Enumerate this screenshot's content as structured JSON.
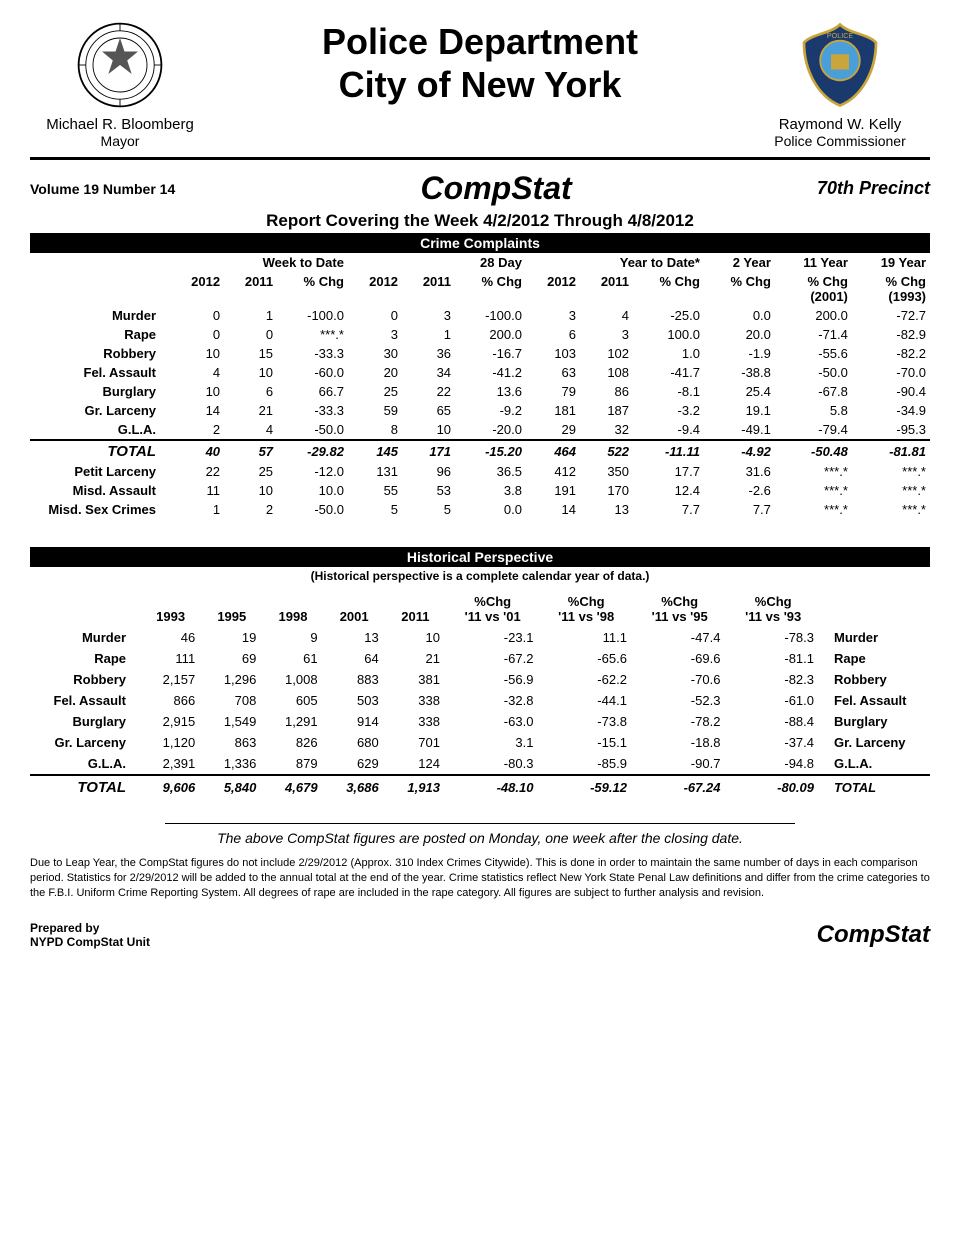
{
  "header": {
    "title_line1": "Police Department",
    "title_line2": "City of New York",
    "left_name": "Michael R. Bloomberg",
    "left_title": "Mayor",
    "right_name": "Raymond W. Kelly",
    "right_title": "Police Commissioner"
  },
  "subheader": {
    "volume": "Volume 19  Number  14",
    "compstat": "CompStat",
    "precinct": "70th Precinct",
    "report_period": "Report Covering the Week  4/2/2012  Through  4/8/2012"
  },
  "crime_complaints": {
    "section_title": "Crime Complaints",
    "group_headers": [
      "",
      "Week to Date",
      "28 Day",
      "Year to Date*",
      "2 Year",
      "11 Year",
      "19 Year"
    ],
    "sub_headers_main": [
      "",
      "2012",
      "2011",
      "% Chg",
      "2012",
      "2011",
      "% Chg",
      "2012",
      "2011",
      "% Chg",
      "% Chg",
      "% Chg (2001)",
      "% Chg (1993)"
    ],
    "rows": [
      {
        "label": "Murder",
        "v": [
          "0",
          "1",
          "-100.0",
          "0",
          "3",
          "-100.0",
          "3",
          "4",
          "-25.0",
          "0.0",
          "200.0",
          "-72.7"
        ]
      },
      {
        "label": "Rape",
        "v": [
          "0",
          "0",
          "***.*",
          "3",
          "1",
          "200.0",
          "6",
          "3",
          "100.0",
          "20.0",
          "-71.4",
          "-82.9"
        ]
      },
      {
        "label": "Robbery",
        "v": [
          "10",
          "15",
          "-33.3",
          "30",
          "36",
          "-16.7",
          "103",
          "102",
          "1.0",
          "-1.9",
          "-55.6",
          "-82.2"
        ]
      },
      {
        "label": "Fel. Assault",
        "v": [
          "4",
          "10",
          "-60.0",
          "20",
          "34",
          "-41.2",
          "63",
          "108",
          "-41.7",
          "-38.8",
          "-50.0",
          "-70.0"
        ]
      },
      {
        "label": "Burglary",
        "v": [
          "10",
          "6",
          "66.7",
          "25",
          "22",
          "13.6",
          "79",
          "86",
          "-8.1",
          "25.4",
          "-67.8",
          "-90.4"
        ]
      },
      {
        "label": "Gr. Larceny",
        "v": [
          "14",
          "21",
          "-33.3",
          "59",
          "65",
          "-9.2",
          "181",
          "187",
          "-3.2",
          "19.1",
          "5.8",
          "-34.9"
        ]
      },
      {
        "label": "G.L.A.",
        "v": [
          "2",
          "4",
          "-50.0",
          "8",
          "10",
          "-20.0",
          "29",
          "32",
          "-9.4",
          "-49.1",
          "-79.4",
          "-95.3"
        ]
      }
    ],
    "total": {
      "label": "TOTAL",
      "v": [
        "40",
        "57",
        "-29.82",
        "145",
        "171",
        "-15.20",
        "464",
        "522",
        "-11.11",
        "-4.92",
        "-50.48",
        "-81.81"
      ]
    },
    "extra_rows": [
      {
        "label": "Petit Larceny",
        "v": [
          "22",
          "25",
          "-12.0",
          "131",
          "96",
          "36.5",
          "412",
          "350",
          "17.7",
          "31.6",
          "***.*",
          "***.*"
        ]
      },
      {
        "label": "Misd. Assault",
        "v": [
          "11",
          "10",
          "10.0",
          "55",
          "53",
          "3.8",
          "191",
          "170",
          "12.4",
          "-2.6",
          "***.*",
          "***.*"
        ]
      },
      {
        "label": "Misd. Sex Crimes",
        "v": [
          "1",
          "2",
          "-50.0",
          "5",
          "5",
          "0.0",
          "14",
          "13",
          "7.7",
          "7.7",
          "***.*",
          "***.*"
        ]
      }
    ]
  },
  "historical": {
    "section_title": "Historical Perspective",
    "note": "(Historical perspective is a complete calendar year of data.)",
    "headers": [
      "",
      "1993",
      "1995",
      "1998",
      "2001",
      "2011",
      "%Chg '11 vs '01",
      "%Chg '11 vs '98",
      "%Chg '11 vs '95",
      "%Chg '11 vs '93",
      ""
    ],
    "rows": [
      {
        "label": "Murder",
        "v": [
          "46",
          "19",
          "9",
          "13",
          "10",
          "-23.1",
          "11.1",
          "-47.4",
          "-78.3"
        ],
        "label_r": "Murder"
      },
      {
        "label": "Rape",
        "v": [
          "111",
          "69",
          "61",
          "64",
          "21",
          "-67.2",
          "-65.6",
          "-69.6",
          "-81.1"
        ],
        "label_r": "Rape"
      },
      {
        "label": "Robbery",
        "v": [
          "2,157",
          "1,296",
          "1,008",
          "883",
          "381",
          "-56.9",
          "-62.2",
          "-70.6",
          "-82.3"
        ],
        "label_r": "Robbery"
      },
      {
        "label": "Fel. Assault",
        "v": [
          "866",
          "708",
          "605",
          "503",
          "338",
          "-32.8",
          "-44.1",
          "-52.3",
          "-61.0"
        ],
        "label_r": "Fel. Assault"
      },
      {
        "label": "Burglary",
        "v": [
          "2,915",
          "1,549",
          "1,291",
          "914",
          "338",
          "-63.0",
          "-73.8",
          "-78.2",
          "-88.4"
        ],
        "label_r": "Burglary"
      },
      {
        "label": "Gr. Larceny",
        "v": [
          "1,120",
          "863",
          "826",
          "680",
          "701",
          "3.1",
          "-15.1",
          "-18.8",
          "-37.4"
        ],
        "label_r": "Gr. Larceny"
      },
      {
        "label": "G.L.A.",
        "v": [
          "2,391",
          "1,336",
          "879",
          "629",
          "124",
          "-80.3",
          "-85.9",
          "-90.7",
          "-94.8"
        ],
        "label_r": "G.L.A."
      }
    ],
    "total": {
      "label": "TOTAL",
      "v": [
        "9,606",
        "5,840",
        "4,679",
        "3,686",
        "1,913",
        "-48.10",
        "-59.12",
        "-67.24",
        "-80.09"
      ],
      "label_r": "TOTAL"
    }
  },
  "footnote": "The above CompStat figures are posted on Monday, one week after the closing date.",
  "disclaimer": "Due to Leap Year, the CompStat figures do not include 2/29/2012 (Approx. 310 Index Crimes Citywide). This is done in order to maintain the same number of days in each comparison period. Statistics for 2/29/2012 will be added to the annual total at the end of the year. Crime statistics reflect New York State Penal Law definitions and differ from the crime categories to the F.B.I. Uniform Crime Reporting System. All degrees of rape are included in the rape category. All figures are subject to further analysis and revision.",
  "footer": {
    "prepared_l1": "Prepared by",
    "prepared_l2": "NYPD CompStat Unit",
    "compstat": "CompStat"
  }
}
